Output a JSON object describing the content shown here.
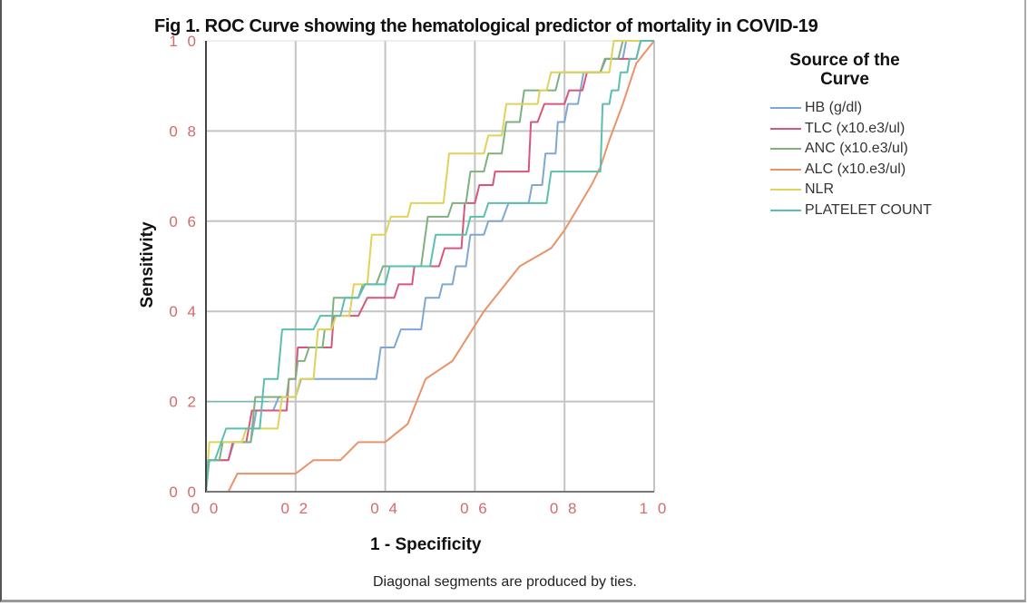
{
  "chart_data": {
    "type": "line",
    "title": "Fig 1. ROC Curve showing the hematological predictor of mortality in COVID-19",
    "xlabel": "1 - Specificity",
    "ylabel": "Sensitivity",
    "xlim": [
      0,
      1
    ],
    "ylim": [
      0,
      1
    ],
    "x_ticks": [
      0.0,
      0.2,
      0.4,
      0.6,
      0.8,
      1.0
    ],
    "y_ticks": [
      0.0,
      0.2,
      0.4,
      0.6,
      0.8,
      1.0
    ],
    "x_tick_labels": [
      "0.0",
      "0.2",
      "0.4",
      "0.6",
      "0.8",
      "1.0"
    ],
    "y_tick_labels": [
      "0.0",
      "0.2",
      "0.4",
      "0.6",
      "0.8",
      "1.0"
    ],
    "grid": true,
    "legend_title": "Source of the Curve",
    "legend_position": "right",
    "footnote": "Diagonal segments are produced by ties.",
    "series": [
      {
        "name": "HB (g/dl)",
        "color": "#7fa7d4",
        "x": [
          0,
          0.02,
          0.05,
          0.1,
          0.15,
          0.2,
          0.25,
          0.38,
          0.42,
          0.48,
          0.52,
          0.55,
          0.58,
          0.62,
          0.66,
          0.72,
          0.75,
          0.78,
          0.8,
          0.83,
          0.88,
          0.93,
          0.96,
          1.0
        ],
        "y": [
          0,
          0.07,
          0.07,
          0.11,
          0.18,
          0.21,
          0.25,
          0.25,
          0.32,
          0.36,
          0.43,
          0.46,
          0.5,
          0.57,
          0.6,
          0.64,
          0.68,
          0.75,
          0.82,
          0.86,
          0.93,
          0.96,
          1.0,
          1.0
        ]
      },
      {
        "name": "TLC (x10.e3/ul)",
        "color": "#d6577a",
        "x": [
          0,
          0.02,
          0.05,
          0.09,
          0.14,
          0.18,
          0.2,
          0.22,
          0.28,
          0.3,
          0.34,
          0.42,
          0.46,
          0.48,
          0.52,
          0.57,
          0.6,
          0.64,
          0.66,
          0.72,
          0.74,
          0.8,
          0.84,
          0.88,
          0.92,
          0.96,
          1.0
        ],
        "y": [
          0,
          0.07,
          0.07,
          0.11,
          0.18,
          0.18,
          0.25,
          0.32,
          0.32,
          0.39,
          0.39,
          0.43,
          0.46,
          0.5,
          0.5,
          0.54,
          0.64,
          0.68,
          0.71,
          0.71,
          0.82,
          0.86,
          0.89,
          0.93,
          0.96,
          0.96,
          1.0
        ]
      },
      {
        "name": "ANC (x10.e3/ul)",
        "color": "#7fb07f",
        "x": [
          0,
          0.03,
          0.06,
          0.1,
          0.14,
          0.18,
          0.2,
          0.22,
          0.26,
          0.28,
          0.3,
          0.34,
          0.38,
          0.44,
          0.48,
          0.54,
          0.58,
          0.62,
          0.66,
          0.7,
          0.74,
          0.78,
          0.82,
          0.88,
          0.92,
          0.96,
          1.0
        ],
        "y": [
          0,
          0.07,
          0.11,
          0.11,
          0.21,
          0.21,
          0.25,
          0.29,
          0.32,
          0.36,
          0.43,
          0.43,
          0.46,
          0.5,
          0.5,
          0.61,
          0.64,
          0.71,
          0.75,
          0.82,
          0.89,
          0.89,
          0.93,
          0.93,
          0.96,
          1.0,
          1.0
        ]
      },
      {
        "name": "ALC (x10.e3/ul)",
        "color": "#e8936a",
        "x": [
          0,
          0.05,
          0.07,
          0.2,
          0.24,
          0.3,
          0.34,
          0.4,
          0.45,
          0.49,
          0.52,
          0.55,
          0.62,
          0.7,
          0.77,
          0.8,
          0.83,
          0.86,
          0.88,
          0.9,
          0.93,
          0.96,
          1.0
        ],
        "y": [
          0,
          0.0,
          0.04,
          0.04,
          0.07,
          0.07,
          0.11,
          0.11,
          0.15,
          0.25,
          0.27,
          0.29,
          0.4,
          0.5,
          0.54,
          0.58,
          0.63,
          0.68,
          0.72,
          0.78,
          0.86,
          0.95,
          1.0
        ],
        "smooth": true
      },
      {
        "name": "NLR",
        "color": "#e0d25a",
        "x": [
          0,
          0.03,
          0.08,
          0.12,
          0.16,
          0.2,
          0.24,
          0.28,
          0.32,
          0.36,
          0.4,
          0.45,
          0.48,
          0.53,
          0.58,
          0.62,
          0.66,
          0.7,
          0.74,
          0.76,
          0.8,
          0.84,
          0.9,
          0.94,
          1.0
        ],
        "y": [
          0,
          0.11,
          0.11,
          0.14,
          0.14,
          0.21,
          0.25,
          0.36,
          0.39,
          0.46,
          0.57,
          0.61,
          0.64,
          0.64,
          0.75,
          0.75,
          0.79,
          0.86,
          0.86,
          0.89,
          0.93,
          0.93,
          0.93,
          1.0,
          1.0
        ]
      },
      {
        "name": "PLATELET COUNT",
        "color": "#5bbfb0",
        "x": [
          0,
          0.02,
          0.12,
          0.16,
          0.2,
          0.24,
          0.3,
          0.34,
          0.4,
          0.44,
          0.5,
          0.55,
          0.58,
          0.62,
          0.66,
          0.7,
          0.76,
          0.8,
          0.82,
          0.88,
          0.9,
          0.92,
          0.94,
          0.96,
          1.0
        ],
        "y": [
          0,
          0.07,
          0.14,
          0.25,
          0.36,
          0.36,
          0.39,
          0.43,
          0.46,
          0.5,
          0.5,
          0.57,
          0.57,
          0.61,
          0.64,
          0.64,
          0.64,
          0.71,
          0.71,
          0.71,
          0.86,
          0.89,
          0.93,
          0.96,
          1.0
        ]
      }
    ],
    "reference_line": {
      "color": "#5bbfb0",
      "x": [
        0,
        1
      ],
      "y": [
        0.2,
        0.2
      ],
      "note": "faint line at left"
    }
  }
}
